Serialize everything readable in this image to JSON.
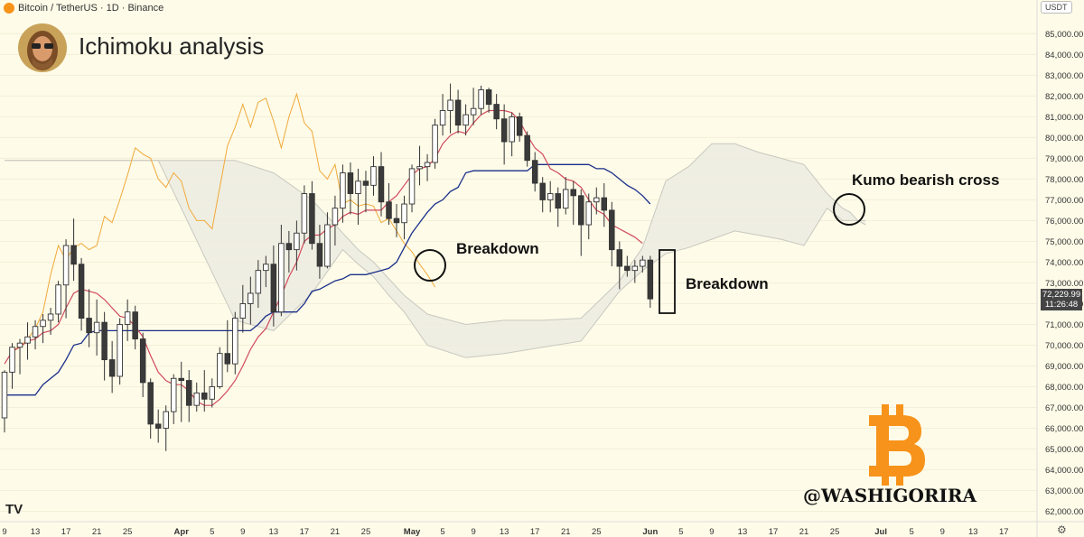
{
  "header": {
    "symbol": "Bitcoin / TetherUS · 1D · Binance"
  },
  "title": "Ichimoku analysis",
  "currency_badge": "USDT",
  "last_price": {
    "value": "72,229.99",
    "countdown": "11:26:48"
  },
  "annotations": {
    "breakdown_1": "Breakdown",
    "breakdown_2": "Breakdown",
    "kumo": "Kumo bearish cross"
  },
  "watermark": "@WASHIGORIRA",
  "logo_glyph": "TV",
  "settings_icon": "⚙",
  "colors": {
    "background": "#fefbe8",
    "up_candle": "#ffffff",
    "down_candle": "#3a3a3a",
    "tenkan": "#d04a5c",
    "kijun": "#1a2f8a",
    "chikou": "#f0a93a",
    "cloud": "#ecebe0",
    "bitcoin": "#f7931a"
  },
  "chart_data": {
    "type": "candlestick",
    "title": "Ichimoku analysis",
    "ylim": [
      61500,
      85800
    ],
    "y_ticks": [
      62000,
      63000,
      64000,
      65000,
      66000,
      67000,
      68000,
      69000,
      70000,
      71000,
      72000,
      73000,
      74000,
      75000,
      76000,
      77000,
      78000,
      79000,
      80000,
      81000,
      82000,
      83000,
      84000,
      85000
    ],
    "y_tick_labels": [
      "62,000.00",
      "63,000.00",
      "64,000.00",
      "65,000.00",
      "66,000.00",
      "67,000.00",
      "68,000.00",
      "69,000.00",
      "70,000.00",
      "71,000.00",
      "72,000.00",
      "73,000.00",
      "74,000.00",
      "75,000.00",
      "76,000.00",
      "77,000.00",
      "78,000.00",
      "79,000.00",
      "80,000.00",
      "81,000.00",
      "82,000.00",
      "83,000.00",
      "84,000.00",
      "85,000.00"
    ],
    "x_ticks": [
      {
        "day": 0,
        "label": "9"
      },
      {
        "day": 4,
        "label": "13"
      },
      {
        "day": 8,
        "label": "17"
      },
      {
        "day": 12,
        "label": "21"
      },
      {
        "day": 16,
        "label": "25"
      },
      {
        "day": 23,
        "label": "Apr"
      },
      {
        "day": 27,
        "label": "5"
      },
      {
        "day": 31,
        "label": "9"
      },
      {
        "day": 35,
        "label": "13"
      },
      {
        "day": 39,
        "label": "17"
      },
      {
        "day": 43,
        "label": "21"
      },
      {
        "day": 47,
        "label": "25"
      },
      {
        "day": 53,
        "label": "May"
      },
      {
        "day": 57,
        "label": "5"
      },
      {
        "day": 61,
        "label": "9"
      },
      {
        "day": 65,
        "label": "13"
      },
      {
        "day": 69,
        "label": "17"
      },
      {
        "day": 73,
        "label": "21"
      },
      {
        "day": 77,
        "label": "25"
      },
      {
        "day": 84,
        "label": "Jun"
      },
      {
        "day": 88,
        "label": "5"
      },
      {
        "day": 92,
        "label": "9"
      },
      {
        "day": 96,
        "label": "13"
      },
      {
        "day": 100,
        "label": "17"
      },
      {
        "day": 104,
        "label": "21"
      },
      {
        "day": 108,
        "label": "25"
      },
      {
        "day": 114,
        "label": "Jul"
      },
      {
        "day": 118,
        "label": "5"
      },
      {
        "day": 122,
        "label": "9"
      },
      {
        "day": 126,
        "label": "13"
      },
      {
        "day": 130,
        "label": "17"
      }
    ],
    "candles": [
      [
        66500,
        68800,
        65800,
        68700
      ],
      [
        68700,
        70100,
        67900,
        69900
      ],
      [
        69900,
        70300,
        68600,
        70100
      ],
      [
        70100,
        71100,
        69300,
        70400
      ],
      [
        70400,
        71200,
        69800,
        70900
      ],
      [
        70900,
        71500,
        70100,
        71200
      ],
      [
        71200,
        71800,
        70500,
        71500
      ],
      [
        71500,
        73100,
        71100,
        72900
      ],
      [
        72900,
        75100,
        71300,
        74800
      ],
      [
        74800,
        76100,
        73100,
        73900
      ],
      [
        73900,
        74200,
        70700,
        71300
      ],
      [
        71300,
        72700,
        69900,
        70600
      ],
      [
        70600,
        72200,
        69500,
        71100
      ],
      [
        71100,
        71600,
        68300,
        69300
      ],
      [
        69300,
        70200,
        67700,
        68500
      ],
      [
        68500,
        71300,
        68100,
        71000
      ],
      [
        71000,
        72200,
        70200,
        71600
      ],
      [
        71600,
        71900,
        69800,
        70300
      ],
      [
        70300,
        70600,
        67500,
        68200
      ],
      [
        68200,
        68400,
        65500,
        66200
      ],
      [
        66200,
        66900,
        65300,
        66000
      ],
      [
        66000,
        67100,
        64900,
        66800
      ],
      [
        66800,
        68600,
        66200,
        68400
      ],
      [
        68400,
        69200,
        66300,
        68300
      ],
      [
        68300,
        68800,
        66300,
        67100
      ],
      [
        67100,
        68200,
        66800,
        67700
      ],
      [
        67700,
        68800,
        66800,
        67400
      ],
      [
        67400,
        68400,
        67000,
        68000
      ],
      [
        68000,
        69900,
        67900,
        69600
      ],
      [
        69600,
        71200,
        68700,
        69100
      ],
      [
        69100,
        71600,
        68600,
        71300
      ],
      [
        71300,
        72900,
        70600,
        72000
      ],
      [
        72000,
        73300,
        71000,
        72500
      ],
      [
        72500,
        74100,
        71800,
        73600
      ],
      [
        73600,
        74300,
        72800,
        73900
      ],
      [
        73900,
        74800,
        70900,
        71600
      ],
      [
        71600,
        75800,
        71400,
        74900
      ],
      [
        74900,
        75500,
        73500,
        74600
      ],
      [
        74600,
        76000,
        73600,
        75400
      ],
      [
        75400,
        77700,
        74900,
        77300
      ],
      [
        77300,
        77900,
        74600,
        74900
      ],
      [
        74900,
        75800,
        73200,
        73800
      ],
      [
        73800,
        76400,
        73700,
        75800
      ],
      [
        75800,
        77200,
        74800,
        76600
      ],
      [
        76600,
        78700,
        75900,
        78300
      ],
      [
        78300,
        78800,
        76300,
        77300
      ],
      [
        77300,
        78500,
        75800,
        77900
      ],
      [
        77900,
        78400,
        76400,
        77700
      ],
      [
        77700,
        79100,
        77200,
        78600
      ],
      [
        78600,
        79300,
        76200,
        76900
      ],
      [
        76900,
        77800,
        75800,
        76100
      ],
      [
        76100,
        76800,
        75200,
        75900
      ],
      [
        75900,
        77200,
        75100,
        76800
      ],
      [
        76800,
        78700,
        76400,
        78500
      ],
      [
        78500,
        79600,
        77700,
        78600
      ],
      [
        78600,
        79200,
        77900,
        78800
      ],
      [
        78800,
        80900,
        78500,
        80600
      ],
      [
        80600,
        82100,
        80100,
        81300
      ],
      [
        81300,
        82600,
        80200,
        81800
      ],
      [
        81800,
        82300,
        80200,
        80600
      ],
      [
        80600,
        81600,
        80100,
        81100
      ],
      [
        81100,
        82400,
        80600,
        81400
      ],
      [
        81400,
        82500,
        81100,
        82300
      ],
      [
        82300,
        82400,
        81200,
        81600
      ],
      [
        81600,
        82100,
        80400,
        80900
      ],
      [
        80900,
        81600,
        78700,
        79800
      ],
      [
        79800,
        81200,
        79100,
        81000
      ],
      [
        81000,
        81200,
        79800,
        80100
      ],
      [
        80100,
        80300,
        78600,
        78900
      ],
      [
        78900,
        79300,
        77400,
        77800
      ],
      [
        77800,
        78100,
        76400,
        77000
      ],
      [
        77000,
        77900,
        76400,
        77300
      ],
      [
        77300,
        77600,
        75700,
        76600
      ],
      [
        76600,
        78100,
        76300,
        77500
      ],
      [
        77500,
        77900,
        75800,
        77200
      ],
      [
        77200,
        77500,
        74300,
        75800
      ],
      [
        75800,
        77300,
        75100,
        76900
      ],
      [
        76900,
        77600,
        76300,
        77100
      ],
      [
        77100,
        77800,
        75700,
        76500
      ],
      [
        76500,
        76900,
        73800,
        74600
      ],
      [
        74600,
        75000,
        72700,
        73800
      ],
      [
        73800,
        74300,
        73300,
        73600
      ],
      [
        73600,
        74100,
        73000,
        73800
      ],
      [
        73800,
        74300,
        73500,
        74100
      ],
      [
        74100,
        74300,
        71800,
        72230
      ]
    ],
    "tenkan": [
      69100,
      69700,
      69900,
      70200,
      70300,
      70600,
      70700,
      71000,
      71800,
      72500,
      72700,
      72600,
      72500,
      72200,
      71800,
      71400,
      71300,
      70900,
      70400,
      69500,
      68700,
      68300,
      68100,
      68100,
      67800,
      67300,
      67100,
      67100,
      67400,
      67800,
      68300,
      69000,
      69800,
      70400,
      70800,
      71600,
      72400,
      73300,
      74000,
      75000,
      75300,
      75300,
      75600,
      75800,
      76200,
      76400,
      76300,
      76500,
      76500,
      76500,
      76900,
      77200,
      77700,
      78200,
      78500,
      78600,
      79000,
      79700,
      80100,
      80300,
      80200,
      80700,
      81100,
      81300,
      81300,
      81300,
      81200,
      80800,
      80100,
      79500,
      79200,
      78500,
      78300,
      78000,
      77900,
      77600,
      77000,
      76500,
      76300,
      75800,
      75600,
      75400,
      75200,
      74900
    ],
    "kijun": [
      67600,
      67600,
      67600,
      67600,
      67600,
      68100,
      68400,
      68700,
      69300,
      70000,
      70100,
      70600,
      70700,
      70700,
      70700,
      70700,
      70700,
      70700,
      70700,
      70700,
      70700,
      70700,
      70700,
      70700,
      70700,
      70700,
      70700,
      70700,
      70700,
      70700,
      70700,
      70700,
      70700,
      71000,
      71400,
      71600,
      71600,
      71600,
      71600,
      72000,
      72600,
      72700,
      72900,
      73100,
      73200,
      73400,
      73400,
      73400,
      73500,
      73600,
      73700,
      74000,
      74700,
      75400,
      75900,
      76400,
      76800,
      77000,
      77400,
      77600,
      78300,
      78400,
      78400,
      78400,
      78400,
      78400,
      78400,
      78400,
      78400,
      78700,
      78700,
      78700,
      78700,
      78700,
      78700,
      78700,
      78700,
      78500,
      78500,
      78300,
      78000,
      77700,
      77500,
      77200,
      76800
    ],
    "chikou": [
      [
        1,
        69800
      ],
      [
        2,
        69900
      ],
      [
        3,
        70300
      ],
      [
        4,
        70800
      ],
      [
        5,
        71600
      ],
      [
        6,
        73400
      ],
      [
        7,
        74800
      ],
      [
        8,
        74100
      ],
      [
        9,
        74700
      ],
      [
        10,
        74900
      ],
      [
        11,
        74600
      ],
      [
        12,
        74800
      ],
      [
        13,
        76200
      ],
      [
        14,
        75900
      ],
      [
        15,
        77000
      ],
      [
        16,
        78200
      ],
      [
        17,
        79500
      ],
      [
        18,
        79200
      ],
      [
        19,
        79000
      ],
      [
        20,
        78000
      ],
      [
        21,
        77600
      ],
      [
        22,
        78300
      ],
      [
        23,
        77900
      ],
      [
        24,
        76600
      ],
      [
        25,
        76000
      ],
      [
        26,
        76000
      ],
      [
        27,
        75600
      ],
      [
        28,
        77600
      ],
      [
        29,
        79600
      ],
      [
        30,
        80500
      ],
      [
        31,
        81600
      ],
      [
        32,
        80500
      ],
      [
        33,
        81700
      ],
      [
        34,
        81900
      ],
      [
        35,
        80800
      ],
      [
        36,
        79500
      ],
      [
        37,
        81000
      ],
      [
        38,
        82100
      ],
      [
        39,
        80700
      ],
      [
        40,
        80300
      ],
      [
        41,
        78400
      ],
      [
        42,
        78000
      ],
      [
        43,
        78700
      ],
      [
        44,
        76800
      ],
      [
        45,
        77000
      ],
      [
        46,
        76700
      ],
      [
        47,
        76800
      ],
      [
        48,
        76700
      ],
      [
        49,
        75900
      ],
      [
        50,
        76100
      ],
      [
        51,
        75500
      ],
      [
        52,
        74900
      ],
      [
        53,
        74500
      ],
      [
        54,
        73900
      ],
      [
        55,
        73400
      ],
      [
        56,
        72800
      ]
    ],
    "cloud": {
      "x": [
        0,
        10,
        20,
        30,
        35,
        40,
        44,
        46,
        48,
        50,
        52,
        55,
        60,
        65,
        70,
        75,
        80,
        83,
        86,
        89,
        92,
        95,
        98,
        101,
        104,
        107,
        109,
        110,
        111,
        112
      ],
      "span_a": [
        78900,
        78900,
        78900,
        78900,
        78300,
        77000,
        75400,
        74600,
        74000,
        73200,
        72400,
        71500,
        71000,
        71200,
        71200,
        71300,
        73100,
        74700,
        77900,
        78600,
        79700,
        79700,
        79300,
        79000,
        78700,
        77300,
        76600,
        76400,
        76000,
        75800
      ],
      "span_b": [
        78900,
        78900,
        78900,
        71200,
        70700,
        72500,
        74600,
        73900,
        73300,
        72400,
        71600,
        70000,
        69400,
        69600,
        69900,
        70200,
        72600,
        73600,
        74400,
        74700,
        75100,
        75500,
        75300,
        75100,
        74800,
        76600,
        76000,
        76000,
        76000,
        76000
      ]
    }
  }
}
